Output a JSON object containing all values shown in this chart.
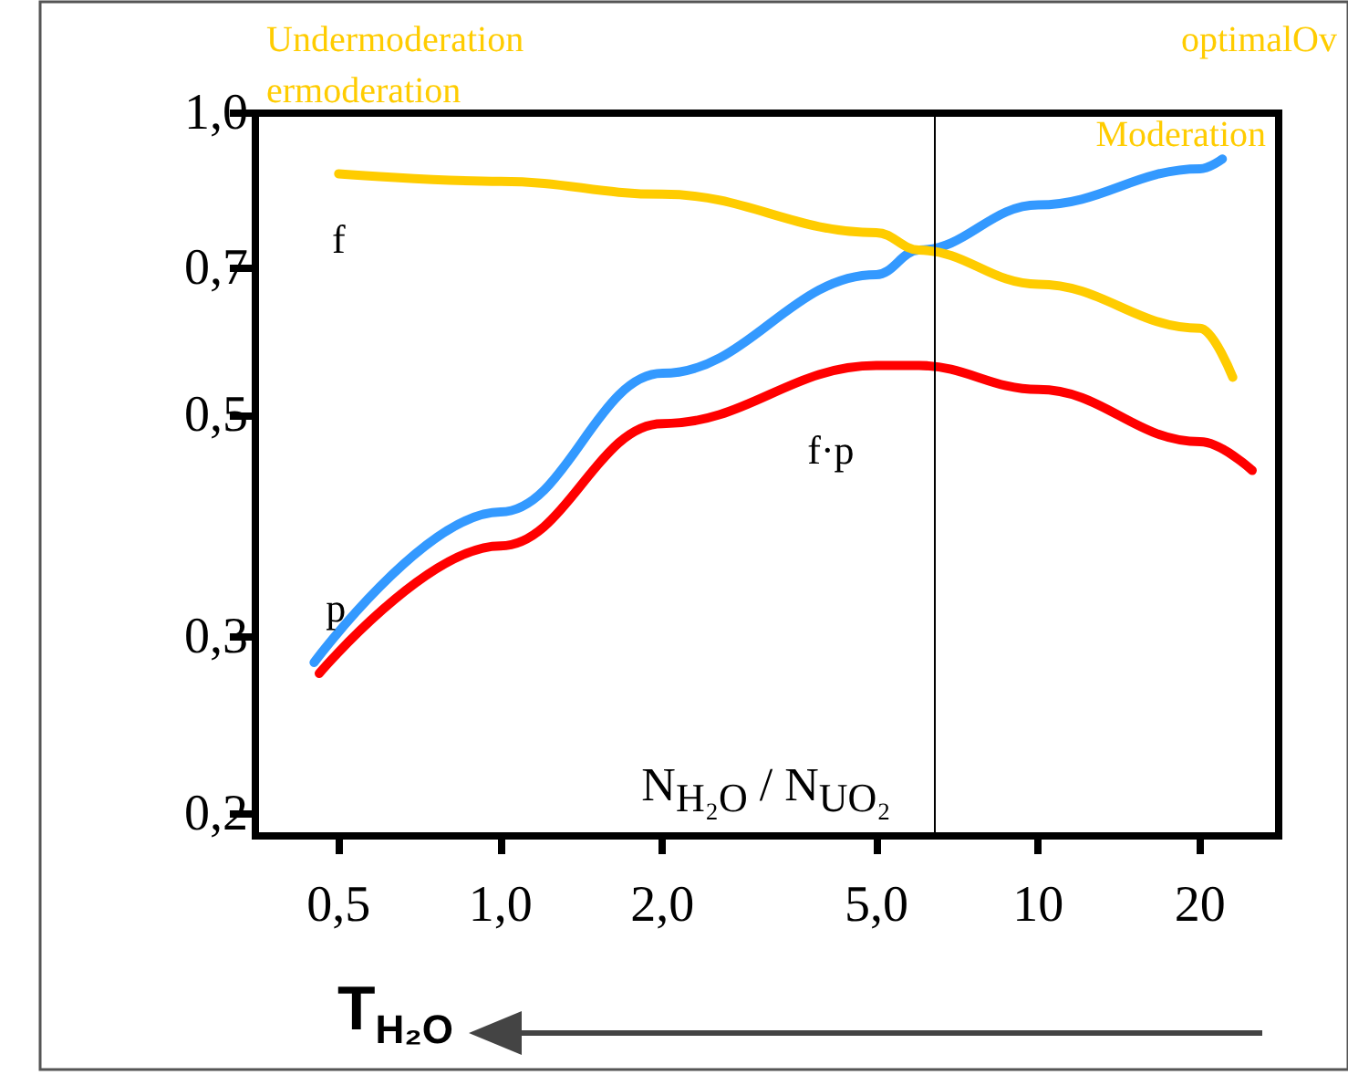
{
  "chart_data": {
    "type": "line",
    "xlabel": "N$_{H₂O}$ / N$_{UO₂}$",
    "x": [
      0.5,
      1,
      2,
      5,
      6,
      10,
      20,
      23
    ],
    "log": "xy",
    "xlim": [
      0.35,
      28
    ],
    "xticks": [
      {
        "value": 0.5,
        "label": "0,5"
      },
      {
        "value": 1,
        "label": "1,0"
      },
      {
        "value": 2,
        "label": "2,0"
      },
      {
        "value": 5,
        "label": "5,0"
      },
      10,
      20
    ],
    "ylim": [
      0.19,
      1.0
    ],
    "yticks": [
      {
        "value": 0.2,
        "label": "0,2"
      },
      {
        "value": 0.3,
        "label": "0,3"
      },
      {
        "value": 0.5,
        "label": "0,5"
      },
      {
        "value": 0.7,
        "label": "0,7"
      },
      {
        "value": 1.0,
        "label": "1,0"
      }
    ],
    "series": [
      {
        "name": "f",
        "color": "#ffcc00",
        "values": [
          0.87,
          0.855,
          0.83,
          0.76,
          0.73,
          0.675,
          0.61,
          0.545
        ]
      },
      {
        "name": "p",
        "color": "#3399ff",
        "x": [
          0.45,
          1,
          2,
          5,
          6,
          10,
          20,
          22
        ],
        "values": [
          0.283,
          0.4,
          0.55,
          0.69,
          0.73,
          0.81,
          0.88,
          0.9
        ]
      },
      {
        "name": "f·p",
        "color": "#ff0000",
        "x": [
          0.46,
          1,
          2,
          5,
          6,
          10,
          20,
          25
        ],
        "values": [
          0.276,
          0.37,
          0.49,
          0.56,
          0.56,
          0.53,
          0.47,
          0.44
        ]
      }
    ],
    "ref_lines": [
      {
        "axis": "x",
        "value": 6.4,
        "color": "#000000"
      }
    ],
    "annotations": [
      "Undermoderation",
      "ermoderation",
      "optimalOv",
      "Moderation",
      "T$_{H₂O}$"
    ],
    "grid": false,
    "legend": false,
    "marker": "none",
    "line_style": "solid"
  }
}
